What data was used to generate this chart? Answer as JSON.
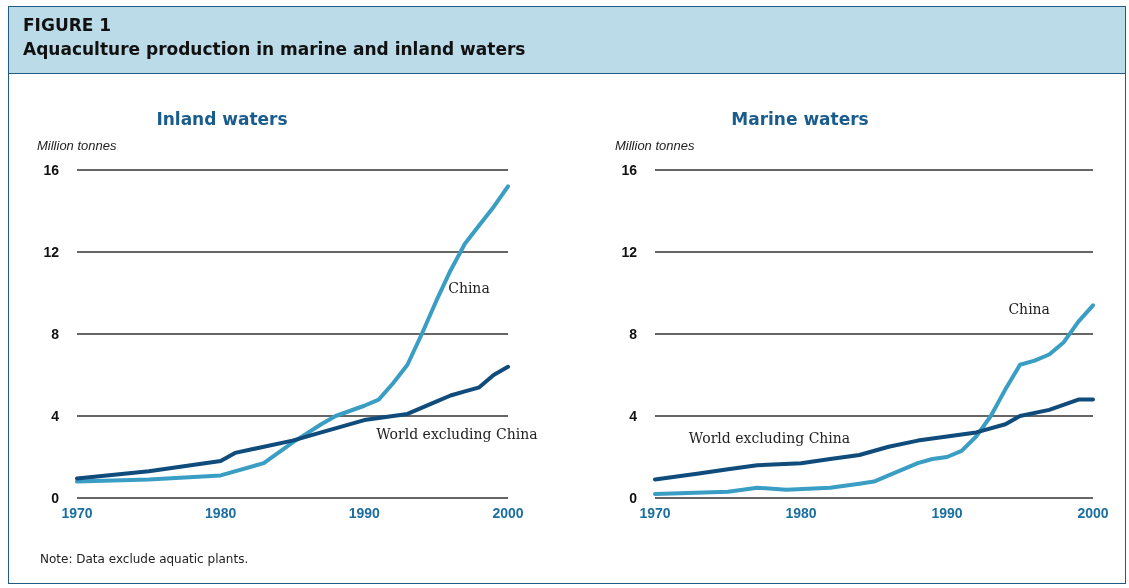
{
  "chart_data": [
    {
      "type": "line",
      "title": "Inland waters",
      "ylabel": "Million tonnes",
      "annotations": [
        "FIGURE 1",
        "Aquaculture production in marine and inland waters",
        "Note: Data exclude aquatic plants."
      ],
      "xlim": [
        1970,
        2000
      ],
      "xticks": [
        1970,
        1980,
        1990,
        2000
      ],
      "ylim": [
        0,
        16
      ],
      "yticks": [
        0,
        4,
        8,
        12,
        16
      ],
      "grid": "y",
      "legend": false,
      "marker": "none",
      "line_style": "solid",
      "series": [
        {
          "name": "China",
          "color": "#3a9ec4",
          "x": [
            1970,
            1975,
            1980,
            1983,
            1985,
            1987,
            1988,
            1990,
            1991,
            1992,
            1993,
            1994,
            1995,
            1996,
            1997,
            1998,
            1999,
            2000
          ],
          "values": [
            0.8,
            0.9,
            1.1,
            1.7,
            2.7,
            3.6,
            4.0,
            4.5,
            4.8,
            5.6,
            6.5,
            8.0,
            9.6,
            11.1,
            12.4,
            13.3,
            14.2,
            15.2
          ]
        },
        {
          "name": "World excluding China",
          "color": "#0f4c7c",
          "x": [
            1970,
            1975,
            1980,
            1981,
            1985,
            1987,
            1990,
            1991,
            1993,
            1995,
            1996,
            1997,
            1998,
            1999,
            2000
          ],
          "values": [
            0.95,
            1.3,
            1.8,
            2.2,
            2.8,
            3.2,
            3.8,
            3.9,
            4.1,
            4.7,
            5.0,
            5.2,
            5.4,
            6.0,
            6.4
          ]
        }
      ]
    },
    {
      "type": "line",
      "title": "Marine waters",
      "ylabel": "Million tonnes",
      "xlim": [
        1970,
        2000
      ],
      "xticks": [
        1970,
        1980,
        1990,
        2000
      ],
      "ylim": [
        0,
        16
      ],
      "yticks": [
        0,
        4,
        8,
        12,
        16
      ],
      "grid": "y",
      "legend": false,
      "marker": "none",
      "line_style": "solid",
      "series": [
        {
          "name": "China",
          "color": "#3a9ec4",
          "x": [
            1970,
            1975,
            1977,
            1979,
            1982,
            1984,
            1985,
            1986,
            1988,
            1989,
            1990,
            1991,
            1992,
            1993,
            1994,
            1995,
            1996,
            1997,
            1998,
            1999,
            2000
          ],
          "values": [
            0.2,
            0.3,
            0.5,
            0.4,
            0.5,
            0.7,
            0.8,
            1.1,
            1.7,
            1.9,
            2.0,
            2.3,
            3.0,
            4.0,
            5.3,
            6.5,
            6.7,
            7.0,
            7.6,
            8.6,
            9.4
          ]
        },
        {
          "name": "World excluding China",
          "color": "#0f4c7c",
          "x": [
            1970,
            1973,
            1975,
            1977,
            1980,
            1982,
            1984,
            1986,
            1988,
            1989,
            1991,
            1992,
            1994,
            1995,
            1997,
            1999,
            2000
          ],
          "values": [
            0.9,
            1.2,
            1.4,
            1.6,
            1.7,
            1.9,
            2.1,
            2.5,
            2.8,
            2.9,
            3.1,
            3.2,
            3.6,
            4.0,
            4.3,
            4.8,
            4.8
          ]
        }
      ]
    }
  ]
}
